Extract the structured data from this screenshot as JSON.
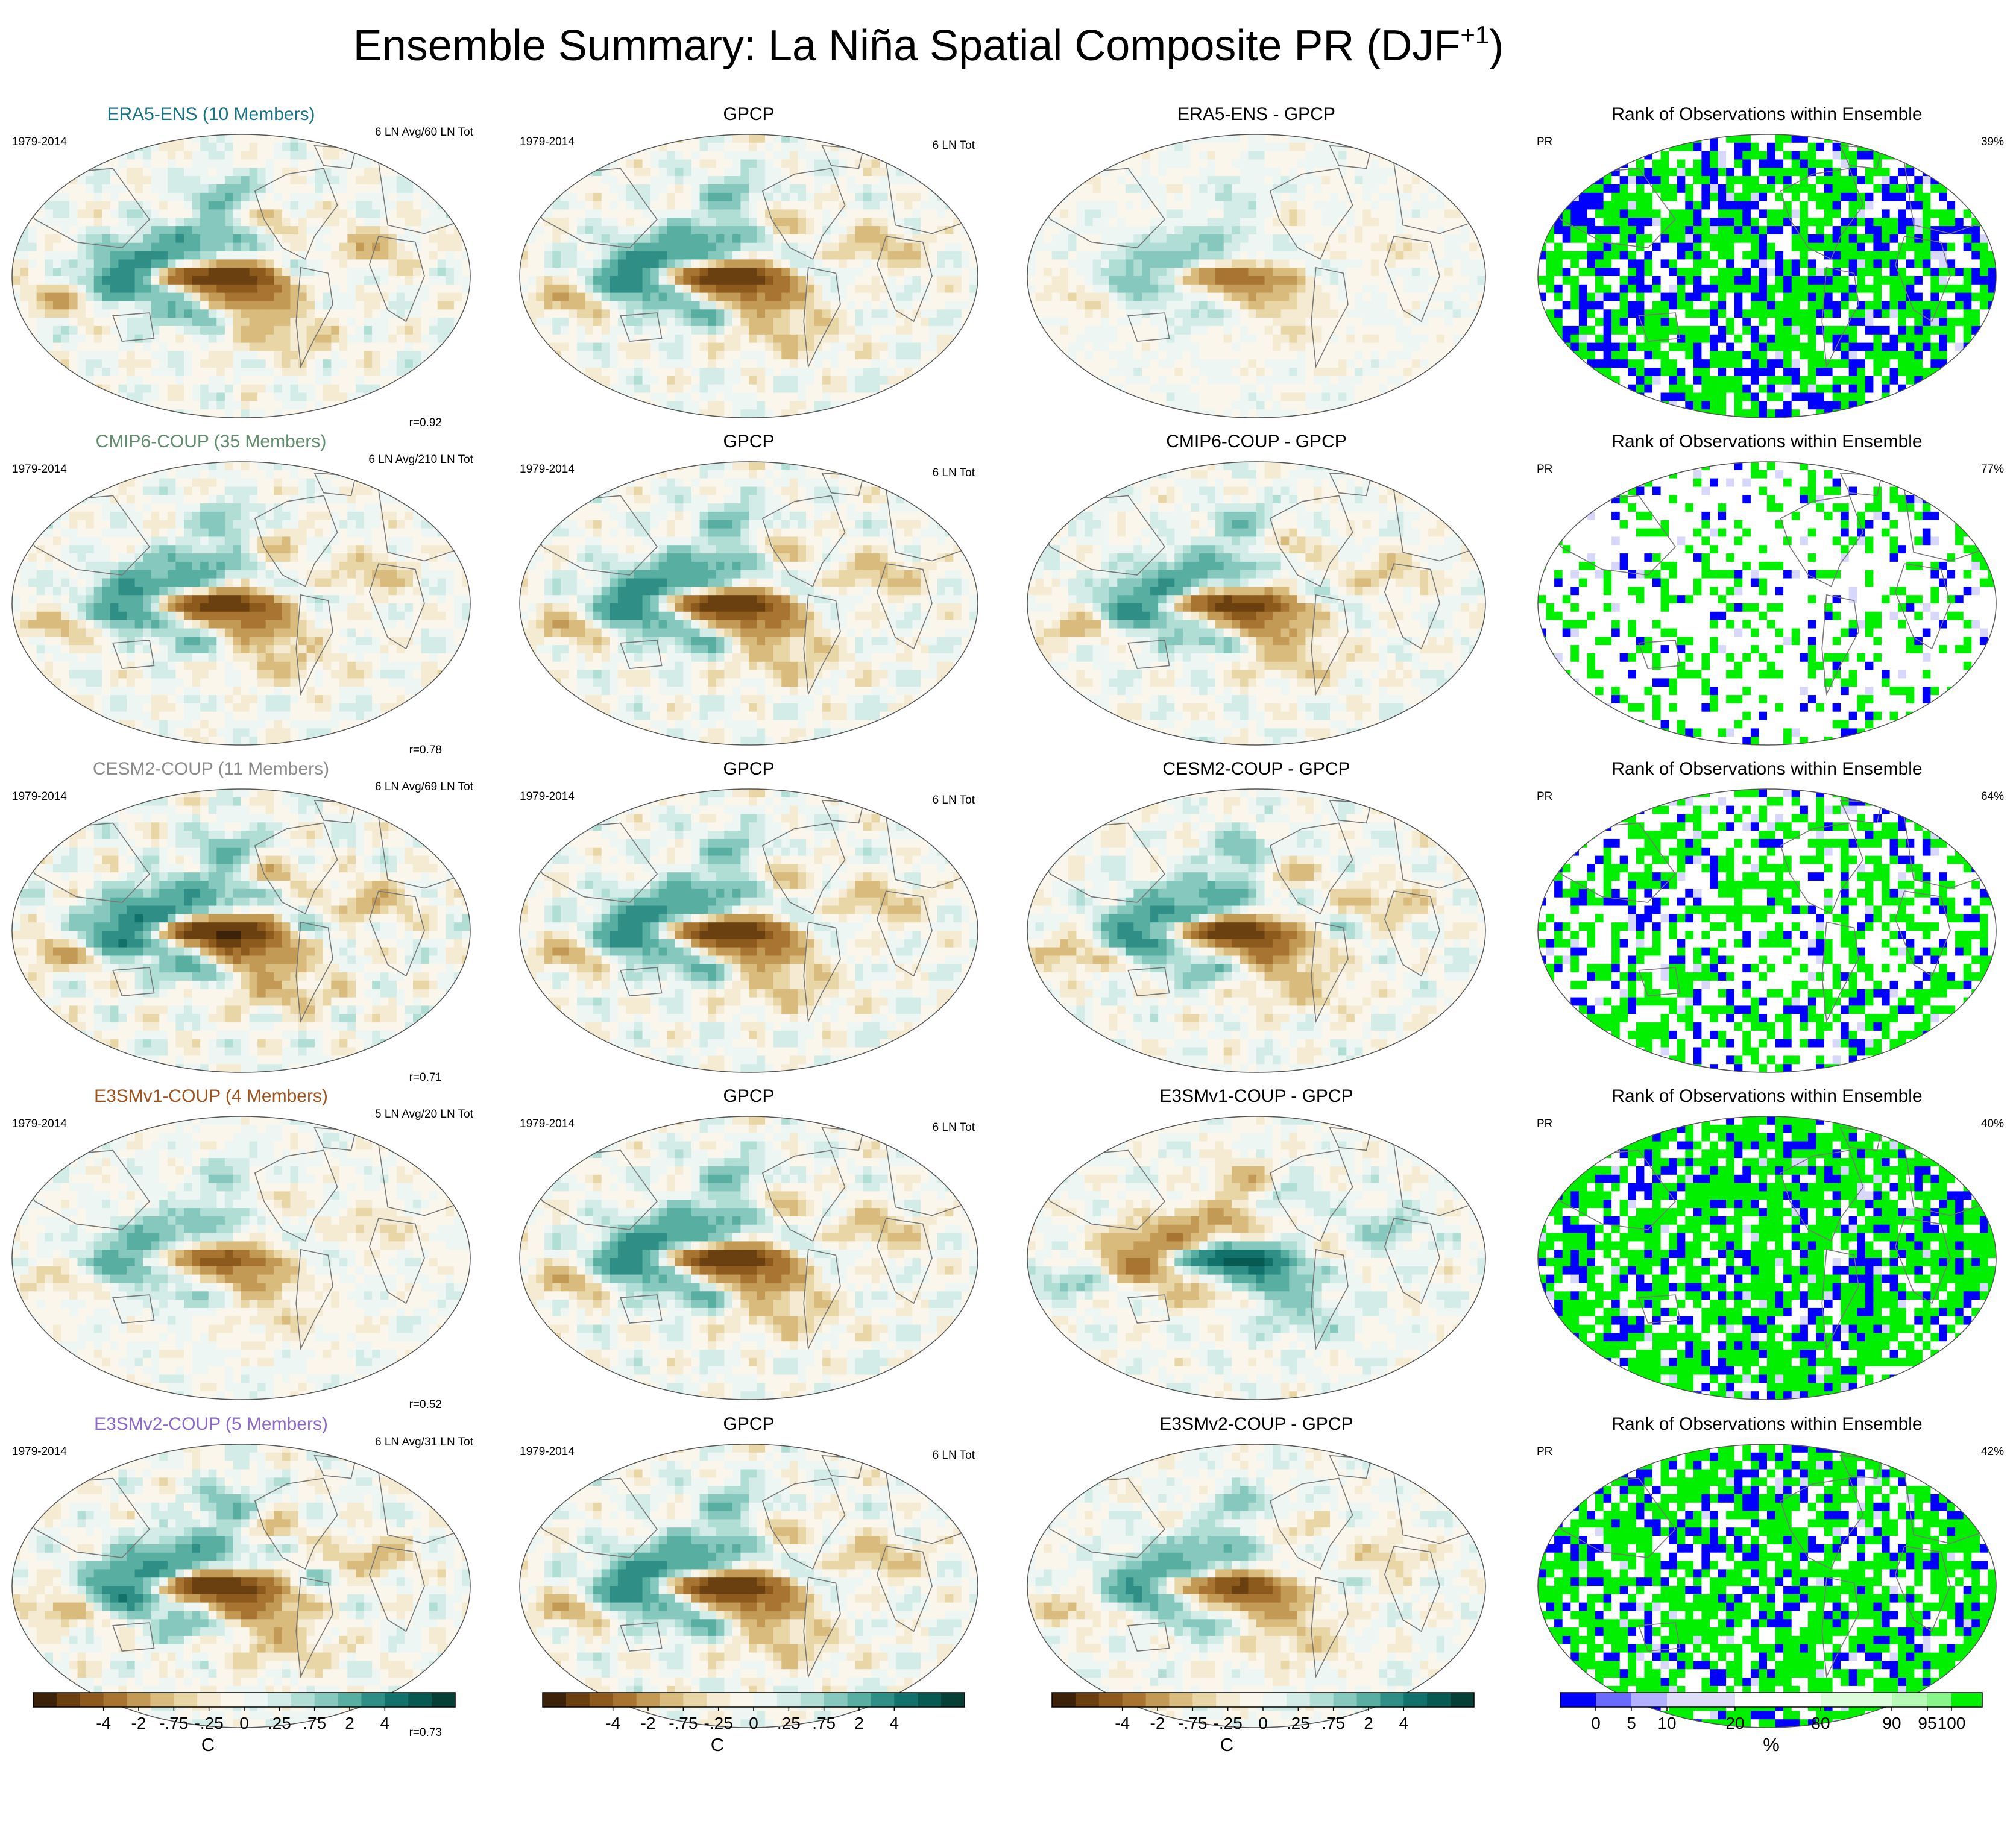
{
  "chart_data": {
    "type": "heatmap",
    "title_main": "Ensemble Summary: La Niña Spatial Composite PR (DJF",
    "title_sup": "+1",
    "title_close": ")",
    "obs_title": "GPCP",
    "rank_title": "Rank of Observations within Ensemble",
    "rank_var": "PR",
    "obs_count": "6 LN Tot",
    "years": "1979-2014",
    "rows": [
      {
        "model": "ERA5-ENS (10 Members)",
        "color": "#197284",
        "count": "6 LN Avg/60 LN Tot",
        "diff": "ERA5-ENS - GPCP",
        "r": "r=0.92",
        "rank_pct": "39%",
        "model_scale": 1.0,
        "diff_scale": 0.45,
        "rank_blue": 0.3,
        "rank_green": 0.45
      },
      {
        "model": "CMIP6-COUP (35 Members)",
        "color": "#5f8c6b",
        "count": "6 LN Avg/210 LN Tot",
        "diff": "CMIP6-COUP - GPCP",
        "r": "r=0.78",
        "rank_pct": "77%",
        "model_scale": 0.9,
        "diff_scale": 0.85,
        "rank_blue": 0.06,
        "rank_green": 0.2
      },
      {
        "model": "CESM2-COUP (11 Members)",
        "color": "#8c8c8c",
        "count": "6 LN Avg/69 LN Tot",
        "diff": "CESM2-COUP - GPCP",
        "r": "r=0.71",
        "rank_pct": "64%",
        "model_scale": 1.15,
        "diff_scale": 0.95,
        "rank_blue": 0.12,
        "rank_green": 0.35
      },
      {
        "model": "E3SMv1-COUP (4 Members)",
        "color": "#a0521b",
        "count": "5 LN Avg/20 LN Tot",
        "diff": "E3SMv1-COUP - GPCP",
        "r": "r=0.52",
        "rank_pct": "40%",
        "model_scale": 0.6,
        "diff_scale": -0.8,
        "rank_blue": 0.2,
        "rank_green": 0.55
      },
      {
        "model": "E3SMv2-COUP (5 Members)",
        "color": "#8b68c9",
        "count": "6 LN Avg/31 LN Tot",
        "diff": "E3SMv2-COUP - GPCP",
        "r": "r=0.73",
        "rank_pct": "42%",
        "model_scale": 1.0,
        "diff_scale": 0.75,
        "rank_blue": 0.22,
        "rank_green": 0.52
      }
    ],
    "anomaly_colorbar": {
      "unit": "C",
      "tick_labels": [
        "-4",
        "-2",
        "-.75",
        "-.25",
        "0",
        ".25",
        ".75",
        "2",
        "4"
      ],
      "colors": [
        "#3d220a",
        "#6b4011",
        "#8c5a1c",
        "#a87431",
        "#c29a55",
        "#d8bb7d",
        "#e9d6a6",
        "#f4ebd2",
        "#fbf6ec",
        "#eef6f4",
        "#d3ece7",
        "#b0ddd4",
        "#86c8bd",
        "#59aea2",
        "#2f8f86",
        "#11726b",
        "#075a52",
        "#053f36"
      ]
    },
    "rank_colorbar": {
      "unit": "%",
      "tick_labels": [
        "0",
        "5",
        "10",
        "20",
        "80",
        "90",
        "95",
        "100"
      ],
      "colors": [
        "#0000ff",
        "#6a6aff",
        "#b1b1ff",
        "#dedef8",
        "#ffffff",
        "#dcfcdc",
        "#b4fab4",
        "#87f587",
        "#00f000"
      ]
    }
  }
}
